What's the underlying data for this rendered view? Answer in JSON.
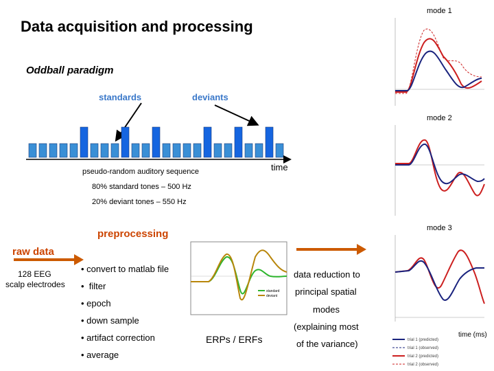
{
  "title": "Data acquisition and processing",
  "paradigm": {
    "heading": "Oddball paradigm",
    "standards_label": "standards",
    "deviants_label": "deviants",
    "time_label": "time",
    "sequence_label": "pseudo-random auditory sequence",
    "standard_info": "80% standard tones – 500 Hz",
    "deviant_info": "20% deviant tones – 550 Hz"
  },
  "preprocessing": {
    "heading": "preprocessing",
    "raw_label": "raw data",
    "raw_detail_line1": "128 EEG",
    "raw_detail_line2": "scalp electrodes",
    "steps": [
      "convert to matlab file",
      "filter",
      "epoch",
      "down sample",
      "artifact correction",
      "average"
    ]
  },
  "erp_plot": {
    "caption": "ERPs / ERFs",
    "legend": [
      "standard",
      "deviant"
    ],
    "colors": {
      "standard": "#2db52d",
      "deviant": "#b8860b"
    }
  },
  "reduction": {
    "line1": "data reduction to",
    "line2": "principal spatial",
    "line3": "modes",
    "line4": "(explaining most",
    "line5": "of the variance)"
  },
  "modes": {
    "labels": [
      "mode 1",
      "mode 2",
      "mode 3"
    ],
    "time_axis_label": "time (ms)",
    "legend": [
      "trial 1 (predicted)",
      "trial 1 (observed)",
      "trial 2 (predicted)",
      "trial 2 (observed)"
    ],
    "colors": {
      "trial1": "#1a237e",
      "trial2": "#cc1f1f"
    }
  },
  "sequence": {
    "pattern": [
      "s",
      "s",
      "s",
      "s",
      "s",
      "d",
      "s",
      "s",
      "s",
      "d",
      "s",
      "s",
      "d",
      "s",
      "s",
      "s",
      "s",
      "d",
      "s",
      "s",
      "d",
      "s",
      "s",
      "d",
      "s"
    ],
    "colors": {
      "standard": "#3a8fd6",
      "deviant": "#1565e0"
    }
  }
}
